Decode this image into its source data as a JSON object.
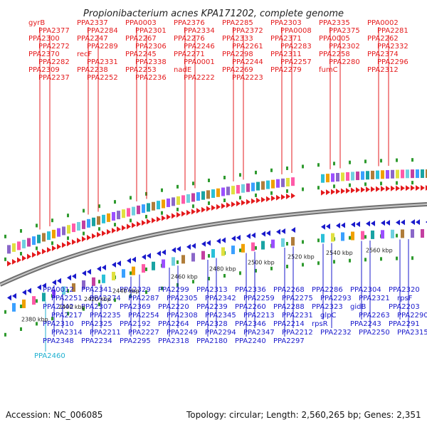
{
  "title": "Propionibacterium acnes KPA171202, complete genome",
  "footer": {
    "accession": "Accession: NC_006085",
    "info": "Topology: circular; Length: 2,560,265 bp; Genes: 2,351"
  },
  "colors": {
    "forward": "#e41a1c",
    "reverse": "#1a1acc",
    "rna": "#1fb0d0",
    "backbone": "#8a8a8a",
    "dots": "#2e9a2e"
  },
  "kbp_ticks": [
    "2380 kbp",
    "2400 kbp",
    "2420 kbp",
    "2440 kbp",
    "2460 kbp",
    "2480 kbp",
    "2500 kbp",
    "2520 kbp",
    "2540 kbp",
    "2560 kbp"
  ],
  "red_labels": [
    "gyrB",
    "PPA2337",
    "PPA0003",
    "PPA2376",
    "PPA2285",
    "PPA2303",
    "PPA2335",
    "PPA0002",
    "PPA2377",
    "PPA2284",
    "PPA2301",
    "PPA2334",
    "PPA2372",
    "PPA0008",
    "PPA2375",
    "PPA2281",
    "PPA2300",
    "PPA2247",
    "PPA2267",
    "PPA2276",
    "PPA2333",
    "PPA2371",
    "PPA0005",
    "PPA2262",
    "PPA2272",
    "PPA2289",
    "PPA2306",
    "PPA2246",
    "PPA2261",
    "PPA2283",
    "PPA2302",
    "PPA2332",
    "PPA2370",
    "recF",
    "PPA2245",
    "PPA2271",
    "PPA2298",
    "PPA2311",
    "PPA2258",
    "PPA2374",
    "PPA2282",
    "PPA2331",
    "PPA2338",
    "PPA0001",
    "PPA2244",
    "PPA2257",
    "PPA2280",
    "PPA2296",
    "PPA2309",
    "PPA2238",
    "PPA2253",
    "nadE",
    "PPA2269",
    "PPA2279",
    "fumC",
    "PPA2312",
    "PPA2237",
    "PPA2252",
    "PPA2236",
    "PPA2222",
    "PPA2223"
  ],
  "blue_labels": [
    "PPA0012",
    "PPA2341",
    "PPA2329",
    "PPA2299",
    "PPA2313",
    "PPA2336",
    "PPA2268",
    "PPA2286",
    "PPA2304",
    "PPA2320",
    "PPA2251",
    "PPA2274",
    "PPA2287",
    "PPA2305",
    "PPA2342",
    "PPA2259",
    "PPA2275",
    "PPA2293",
    "PPA2321",
    "rpsF",
    "PPA2242",
    "PPA2307",
    "PPA2369",
    "PPA2220",
    "PPA2239",
    "PPA2260",
    "PPA2288",
    "PPA2323",
    "gidB",
    "PPA2203",
    "PPA2217",
    "PPA2235",
    "PPA2254",
    "PPA2308",
    "PPA2345",
    "PPA2213",
    "PPA2231",
    "glpC",
    "PPA2263",
    "PPA2290",
    "PPA2310",
    "PPA2325",
    "PPA2192",
    "PPA2264",
    "PPA2328",
    "PPA2346",
    "PPA2214",
    "rpsR",
    "PPA2243",
    "PPA2291",
    "PPA2314",
    "PPA2211",
    "PPA2227",
    "PPA2249",
    "PPA2294",
    "PPA2347",
    "PPA2212",
    "PPA2232",
    "PPA2250",
    "PPA2315",
    "PPA2348",
    "PPA2234",
    "PPA2295",
    "PPA2318",
    "PPA2180",
    "PPA2240",
    "PPA2297"
  ],
  "rna_labels": [
    "PPA2460"
  ]
}
